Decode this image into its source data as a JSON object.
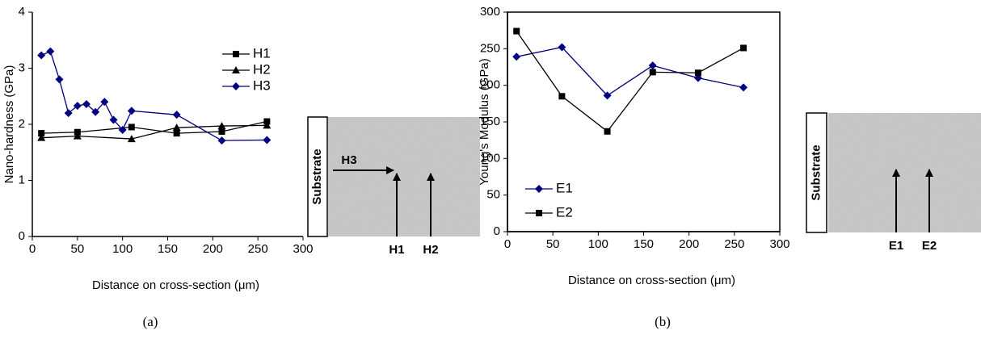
{
  "chart_data": [
    {
      "type": "line",
      "caption": "(a)",
      "x_label": "Distance on cross-section (μm)",
      "y_label": "Nano-hardness (GPa)",
      "xlim": [
        0,
        300
      ],
      "xticks": [
        0,
        50,
        100,
        150,
        200,
        250,
        300
      ],
      "ylim": [
        0,
        4
      ],
      "yticks": [
        0,
        1,
        2,
        3,
        4
      ],
      "legend": "upper right",
      "frame": false,
      "series": [
        {
          "name": "H1",
          "color": "#000000",
          "marker": "square",
          "x": [
            10,
            50,
            110,
            160,
            210,
            260
          ],
          "values": [
            1.84,
            1.86,
            1.95,
            1.84,
            1.87,
            2.05
          ]
        },
        {
          "name": "H2",
          "color": "#000000",
          "marker": "triangle",
          "x": [
            10,
            50,
            110,
            160,
            210,
            260
          ],
          "values": [
            1.76,
            1.79,
            1.74,
            1.94,
            1.97,
            1.98
          ]
        },
        {
          "name": "H3",
          "color": "#000080",
          "marker": "diamond",
          "x": [
            10,
            20,
            30,
            40,
            50,
            60,
            70,
            80,
            90,
            100,
            110,
            160,
            210,
            260
          ],
          "values": [
            3.23,
            3.3,
            2.8,
            2.2,
            2.33,
            2.36,
            2.22,
            2.4,
            2.08,
            1.9,
            2.24,
            2.17,
            1.71,
            1.72
          ]
        }
      ],
      "micrograph": {
        "substrate": "Substrate",
        "horizontal_arrow": "H3",
        "vertical_arrows": [
          "H1",
          "H2"
        ]
      }
    },
    {
      "type": "line",
      "caption": "(b)",
      "x_label": "Distance on cross-section (μm)",
      "y_label": "Young's Modulus (GPa)",
      "xlim": [
        0,
        300
      ],
      "xticks": [
        0,
        50,
        100,
        150,
        200,
        250,
        300
      ],
      "ylim": [
        0,
        300
      ],
      "yticks": [
        0,
        50,
        100,
        150,
        200,
        250,
        300
      ],
      "legend": "lower left",
      "frame": true,
      "series": [
        {
          "name": "E1",
          "color": "#000080",
          "marker": "diamond",
          "x": [
            10,
            60,
            110,
            160,
            210,
            260
          ],
          "values": [
            239,
            252,
            186,
            227,
            210,
            197
          ]
        },
        {
          "name": "E2",
          "color": "#000000",
          "marker": "square",
          "x": [
            10,
            60,
            110,
            160,
            210,
            260
          ],
          "values": [
            274,
            185,
            137,
            218,
            217,
            251
          ]
        }
      ],
      "micrograph": {
        "substrate": "Substrate",
        "horizontal_arrow": null,
        "vertical_arrows": [
          "E1",
          "E2"
        ]
      }
    }
  ]
}
